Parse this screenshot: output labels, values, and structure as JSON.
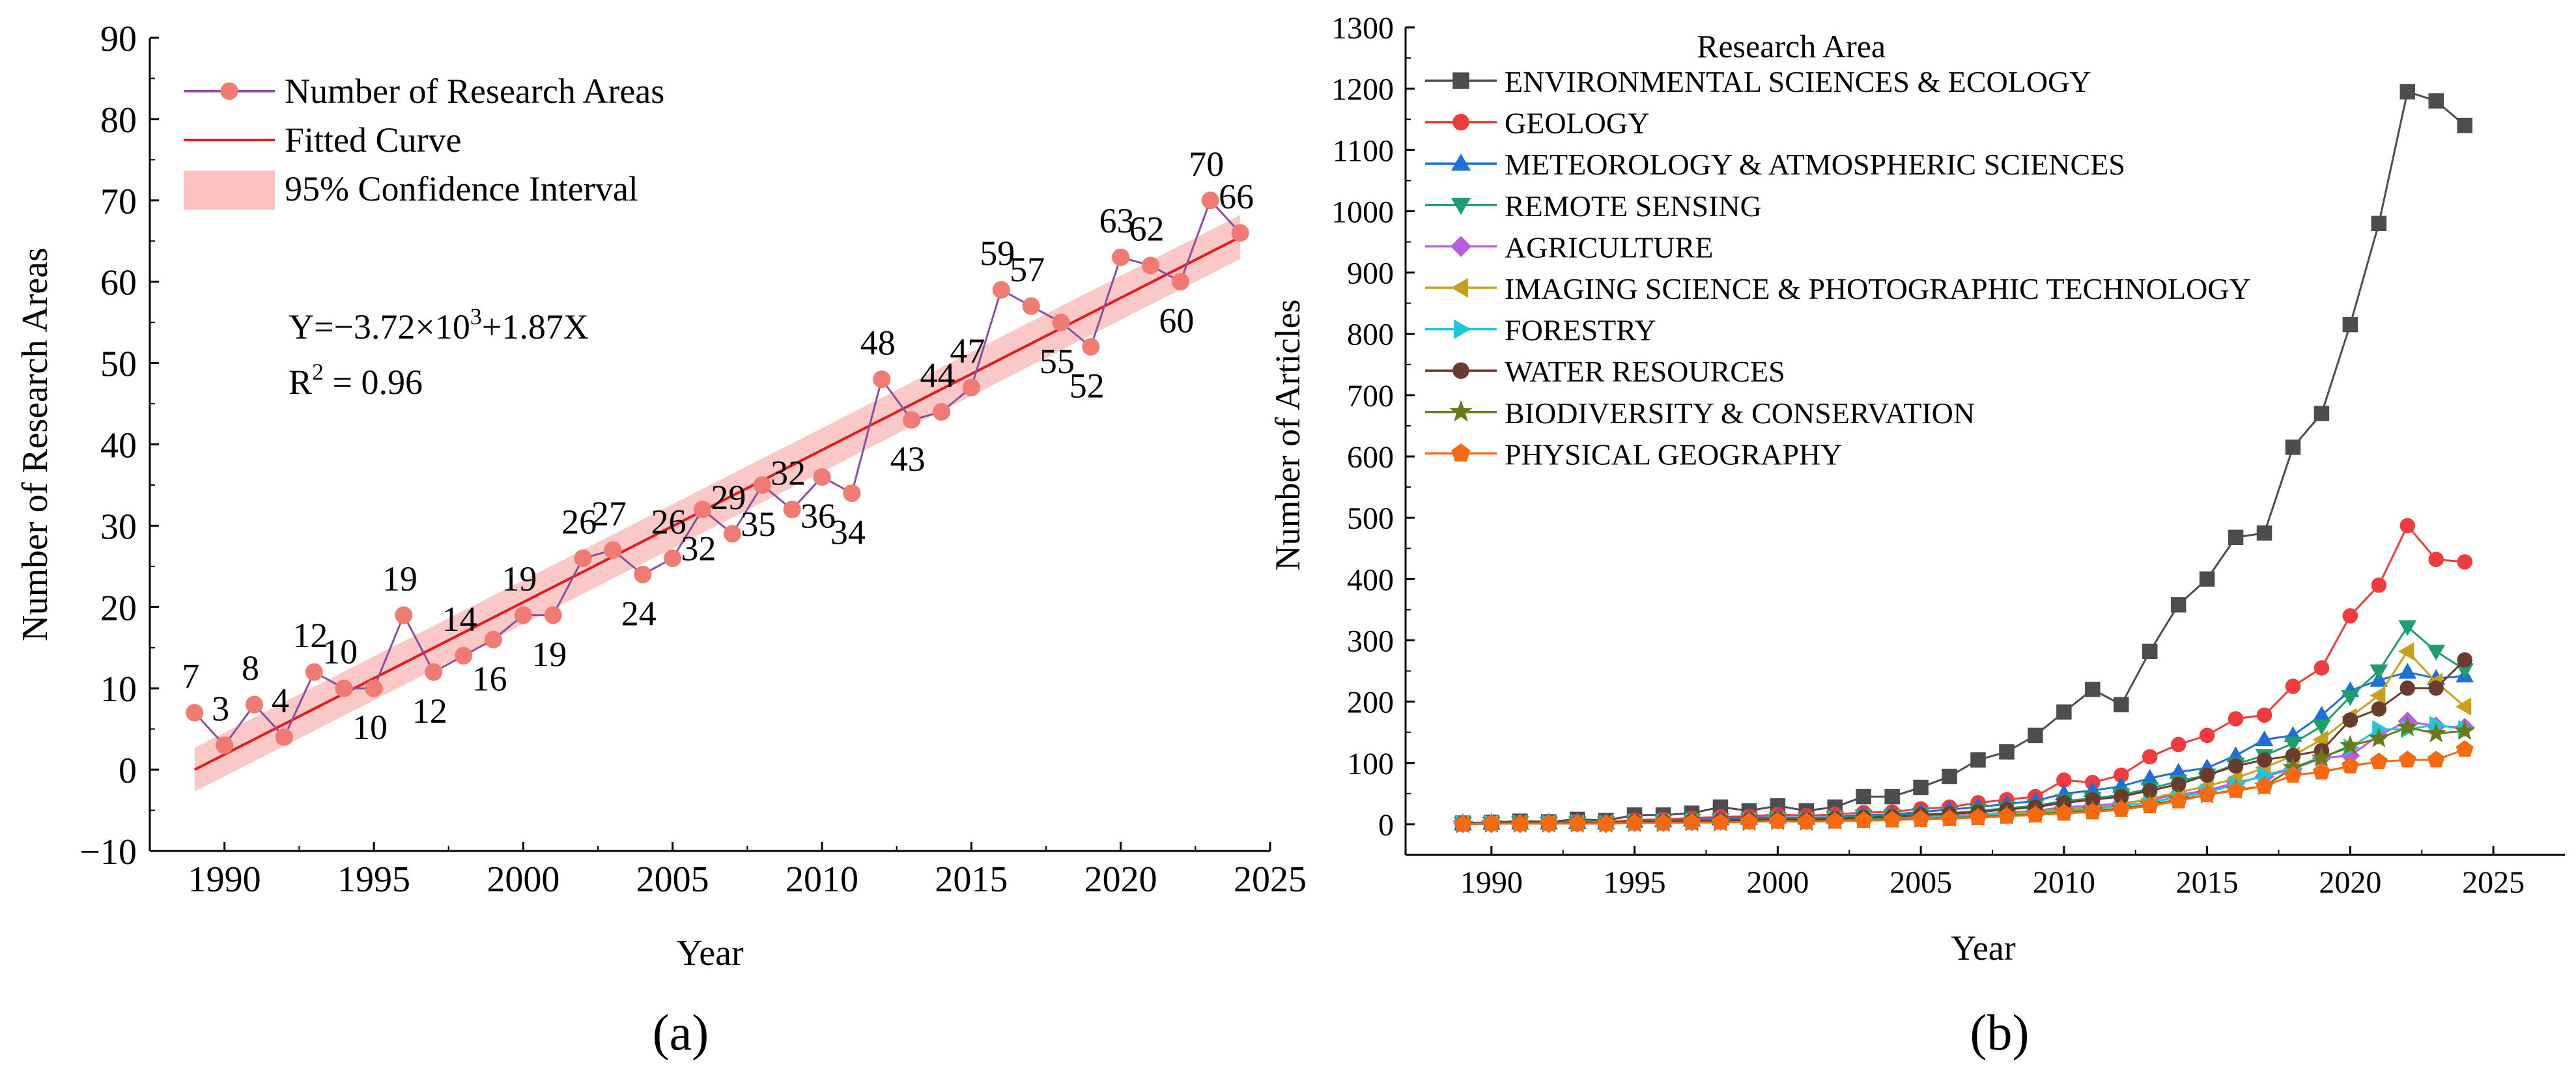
{
  "chart_data": [
    {
      "type": "line",
      "panel_label": "(a)",
      "xlabel": "Year",
      "ylabel": "Number of Research Areas",
      "xlim": [
        1987.5,
        2025
      ],
      "ylim": [
        -10,
        90
      ],
      "xticks": [
        1990,
        1995,
        2000,
        2005,
        2010,
        2015,
        2020,
        2025
      ],
      "yticks": [
        -10,
        0,
        10,
        20,
        30,
        40,
        50,
        60,
        70,
        80,
        90
      ],
      "legend": [
        "Number of Research Areas",
        "Fitted Curve",
        "95% Confidence Interval"
      ],
      "legend_position": "top-left",
      "equation_text": "Y=−3.72×10",
      "equation_exponent": "3",
      "equation_rest": "+1.87X",
      "r2_text": "R",
      "r2_exponent": "2",
      "r2_rest": " = 0.96",
      "fit": {
        "slope": 1.87,
        "x0": 1989,
        "y0": 0,
        "x1": 2024,
        "y1": 65.5,
        "ci_halfwidth": 2.7
      },
      "x": [
        1989,
        1990,
        1991,
        1992,
        1993,
        1994,
        1995,
        1996,
        1997,
        1998,
        1999,
        2000,
        2001,
        2002,
        2003,
        2004,
        2005,
        2006,
        2007,
        2008,
        2009,
        2010,
        2011,
        2012,
        2013,
        2014,
        2015,
        2016,
        2017,
        2018,
        2019,
        2020,
        2021,
        2022,
        2023,
        2024
      ],
      "values": [
        7,
        3,
        8,
        4,
        12,
        10,
        10,
        19,
        12,
        14,
        16,
        19,
        19,
        26,
        27,
        24,
        26,
        32,
        29,
        35,
        32,
        36,
        34,
        48,
        43,
        44,
        47,
        59,
        57,
        55,
        52,
        63,
        62,
        60,
        70,
        66
      ],
      "data_labels": [
        "7",
        "3",
        "8",
        "4",
        "12",
        "10",
        "10",
        "19",
        "12",
        "14",
        "16",
        "19",
        "19",
        "26",
        "27",
        "24",
        "26",
        "32",
        "29",
        "35",
        "32",
        "36",
        "34",
        "48",
        "43",
        "44",
        "47",
        "59",
        "57",
        "55",
        "52",
        "63",
        "62",
        "60",
        "70",
        "66"
      ],
      "label_pos": [
        "above",
        "above",
        "above",
        "above",
        "above",
        "above",
        "below",
        "above",
        "below",
        "above",
        "below",
        "above",
        "below",
        "above",
        "above",
        "below",
        "above",
        "below",
        "above",
        "below",
        "above",
        "below",
        "below",
        "above",
        "below",
        "above",
        "above",
        "above",
        "above",
        "below",
        "below",
        "above",
        "above",
        "below",
        "above",
        "above"
      ],
      "colors": {
        "series": "#8a4f9e",
        "marker": "#f07b72",
        "fit": "#e31a1c",
        "band": "#f9b6b6"
      }
    },
    {
      "type": "line",
      "panel_label": "(b)",
      "xlabel": "Year",
      "ylabel": "Number of Articles",
      "legend_title": "Research Area",
      "legend_position": "top-left",
      "xlim": [
        1987,
        2027.5
      ],
      "ylim": [
        -50,
        1300
      ],
      "xticks": [
        1990,
        1995,
        2000,
        2005,
        2010,
        2015,
        2020,
        2025
      ],
      "yticks": [
        0,
        100,
        200,
        300,
        400,
        500,
        600,
        700,
        800,
        900,
        1000,
        1100,
        1200,
        1300
      ],
      "x": [
        1989,
        1990,
        1991,
        1992,
        1993,
        1994,
        1995,
        1996,
        1997,
        1998,
        1999,
        2000,
        2001,
        2002,
        2003,
        2004,
        2005,
        2006,
        2007,
        2008,
        2009,
        2010,
        2011,
        2012,
        2013,
        2014,
        2015,
        2016,
        2017,
        2018,
        2019,
        2020,
        2021,
        2022,
        2023,
        2024
      ],
      "series": [
        {
          "name": "ENVIRONMENTAL SCIENCES & ECOLOGY",
          "color": "#4d4d4d",
          "marker": "square",
          "values": [
            2,
            3,
            5,
            4,
            8,
            6,
            15,
            15,
            18,
            28,
            22,
            30,
            22,
            28,
            45,
            45,
            60,
            78,
            105,
            118,
            145,
            183,
            220,
            195,
            282,
            358,
            400,
            468,
            475,
            615,
            670,
            815,
            980,
            1195,
            1180,
            1140
          ]
        },
        {
          "name": "GEOLOGY",
          "color": "#ef3b3b",
          "marker": "circle",
          "values": [
            1,
            2,
            3,
            2,
            4,
            3,
            7,
            8,
            10,
            12,
            13,
            16,
            14,
            16,
            19,
            20,
            25,
            28,
            35,
            40,
            45,
            72,
            68,
            80,
            110,
            130,
            145,
            172,
            178,
            225,
            255,
            340,
            390,
            487,
            432,
            428
          ]
        },
        {
          "name": "METEOROLOGY & ATMOSPHERIC SCIENCES",
          "color": "#1f6fd6",
          "marker": "triangle-up",
          "values": [
            1,
            2,
            2,
            2,
            3,
            2,
            5,
            6,
            7,
            9,
            10,
            12,
            10,
            12,
            15,
            16,
            20,
            24,
            28,
            33,
            38,
            50,
            55,
            62,
            75,
            85,
            92,
            112,
            138,
            145,
            178,
            218,
            235,
            248,
            238,
            242
          ]
        },
        {
          "name": "REMOTE SENSING",
          "color": "#1e9e6e",
          "marker": "triangle-down",
          "values": [
            1,
            1,
            2,
            1,
            2,
            2,
            4,
            5,
            6,
            7,
            7,
            9,
            8,
            10,
            13,
            14,
            16,
            18,
            22,
            26,
            30,
            38,
            42,
            48,
            58,
            70,
            80,
            98,
            112,
            132,
            160,
            208,
            250,
            322,
            282,
            252
          ]
        },
        {
          "name": "AGRICULTURE",
          "color": "#b55ee0",
          "marker": "diamond",
          "values": [
            1,
            1,
            1,
            1,
            2,
            1,
            3,
            3,
            4,
            5,
            6,
            7,
            6,
            8,
            9,
            10,
            12,
            14,
            16,
            19,
            22,
            28,
            30,
            34,
            40,
            48,
            55,
            68,
            78,
            90,
            108,
            112,
            145,
            168,
            160,
            158
          ]
        },
        {
          "name": "IMAGING SCIENCE & PHOTOGRAPHIC TECHNOLOGY",
          "color": "#c7a11d",
          "marker": "triangle-left",
          "values": [
            1,
            1,
            1,
            1,
            1,
            1,
            2,
            3,
            3,
            4,
            5,
            6,
            5,
            7,
            8,
            9,
            11,
            12,
            15,
            18,
            20,
            25,
            28,
            32,
            42,
            52,
            62,
            75,
            92,
            112,
            138,
            175,
            210,
            282,
            232,
            192
          ]
        },
        {
          "name": "FORESTRY",
          "color": "#1fc8d8",
          "marker": "triangle-right",
          "values": [
            1,
            1,
            1,
            1,
            2,
            1,
            3,
            3,
            4,
            4,
            5,
            6,
            5,
            7,
            8,
            9,
            11,
            12,
            14,
            16,
            18,
            22,
            25,
            30,
            36,
            44,
            52,
            65,
            80,
            92,
            110,
            125,
            155,
            155,
            162,
            155
          ]
        },
        {
          "name": "WATER RESOURCES",
          "color": "#6b3b2e",
          "marker": "circle",
          "values": [
            1,
            1,
            2,
            1,
            2,
            2,
            4,
            4,
            5,
            6,
            7,
            8,
            7,
            9,
            11,
            12,
            15,
            17,
            20,
            24,
            28,
            35,
            40,
            45,
            55,
            65,
            80,
            95,
            105,
            112,
            120,
            170,
            188,
            222,
            222,
            268
          ]
        },
        {
          "name": "BIODIVERSITY & CONSERVATION",
          "color": "#6b7a18",
          "marker": "star",
          "values": [
            0,
            1,
            1,
            1,
            1,
            1,
            2,
            2,
            3,
            3,
            4,
            5,
            4,
            6,
            7,
            8,
            9,
            10,
            12,
            14,
            16,
            20,
            22,
            26,
            32,
            40,
            48,
            56,
            62,
            92,
            108,
            128,
            140,
            158,
            148,
            152
          ]
        },
        {
          "name": "PHYSICAL GEOGRAPHY",
          "color": "#f56a10",
          "marker": "pentagon",
          "values": [
            0,
            1,
            1,
            1,
            1,
            1,
            2,
            2,
            3,
            3,
            4,
            5,
            4,
            5,
            6,
            7,
            8,
            9,
            11,
            13,
            15,
            18,
            20,
            24,
            30,
            38,
            48,
            55,
            62,
            80,
            85,
            95,
            102,
            105,
            105,
            122
          ]
        }
      ]
    }
  ]
}
